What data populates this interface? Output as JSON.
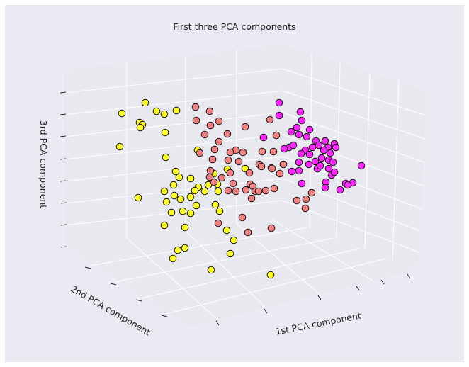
{
  "chart_data": {
    "type": "scatter",
    "title": "First three PCA components",
    "xlabel": "1st PCA component",
    "ylabel": "2nd PCA component",
    "zlabel": "3rd PCA component",
    "grid": true,
    "colors": {
      "background": "#eaeaf2",
      "pane": "#e8e8ef",
      "grid": "#ffffff",
      "marker_edge": "#1a1a1a"
    },
    "series": [
      {
        "color": "#ffff26",
        "points": [
          [
            205,
            145
          ],
          [
            172,
            160
          ],
          [
            221,
            157
          ],
          [
            232,
            161
          ],
          [
            249,
            156
          ],
          [
            197,
            173
          ],
          [
            201,
            176
          ],
          [
            198,
            180
          ],
          [
            233,
            187
          ],
          [
            169,
            207
          ],
          [
            279,
            212
          ],
          [
            234,
            222
          ],
          [
            321,
            239
          ],
          [
            248,
            242
          ],
          [
            346,
            238
          ],
          [
            302,
            245
          ],
          [
            253,
            250
          ],
          [
            269,
            252
          ],
          [
            245,
            261
          ],
          [
            294,
            261
          ],
          [
            307,
            260
          ],
          [
            280,
            264
          ],
          [
            232,
            270
          ],
          [
            275,
            269
          ],
          [
            289,
            270
          ],
          [
            308,
            270
          ],
          [
            246,
            276
          ],
          [
            195,
            279
          ],
          [
            255,
            281
          ],
          [
            269,
            278
          ],
          [
            235,
            285
          ],
          [
            277,
            290
          ],
          [
            304,
            289
          ],
          [
            258,
            298
          ],
          [
            242,
            300
          ],
          [
            269,
            301
          ],
          [
            310,
            298
          ],
          [
            232,
            318
          ],
          [
            261,
            321
          ],
          [
            320,
            325
          ],
          [
            330,
            339
          ],
          [
            251,
            353
          ],
          [
            261,
            350
          ],
          [
            325,
            358
          ],
          [
            244,
            365
          ],
          [
            298,
            381
          ],
          [
            382,
            388
          ]
        ]
      },
      {
        "color": "#f08080",
        "points": [
          [
            276,
            151
          ],
          [
            296,
            157
          ],
          [
            277,
            170
          ],
          [
            309,
            171
          ],
          [
            297,
            177
          ],
          [
            381,
            169
          ],
          [
            346,
            179
          ],
          [
            289,
            190
          ],
          [
            321,
            189
          ],
          [
            309,
            200
          ],
          [
            390,
            191
          ],
          [
            303,
            211
          ],
          [
            333,
            212
          ],
          [
            325,
            215
          ],
          [
            343,
            215
          ],
          [
            282,
            216
          ],
          [
            370,
            214
          ],
          [
            386,
            214
          ],
          [
            300,
            225
          ],
          [
            322,
            226
          ],
          [
            337,
            228
          ],
          [
            366,
            232
          ],
          [
            383,
            237
          ],
          [
            369,
            235
          ],
          [
            400,
            232
          ],
          [
            297,
            241
          ],
          [
            352,
            244
          ],
          [
            384,
            238
          ],
          [
            325,
            244
          ],
          [
            296,
            250
          ],
          [
            313,
            251
          ],
          [
            395,
            245
          ],
          [
            329,
            259
          ],
          [
            302,
            257
          ],
          [
            353,
            260
          ],
          [
            357,
            263
          ],
          [
            375,
            269
          ],
          [
            387,
            266
          ],
          [
            360,
            270
          ],
          [
            347,
            268
          ],
          [
            333,
            270
          ],
          [
            322,
            269
          ],
          [
            365,
            270
          ],
          [
            355,
            280
          ],
          [
            440,
            272
          ],
          [
            419,
            283
          ],
          [
            432,
            281
          ],
          [
            431,
            294
          ],
          [
            342,
            307
          ],
          [
            308,
            315
          ],
          [
            383,
            322
          ],
          [
            350,
            328
          ]
        ]
      },
      {
        "color": "#ff26ff",
        "points": [
          [
            394,
            145
          ],
          [
            424,
            158
          ],
          [
            394,
            163
          ],
          [
            426,
            170
          ],
          [
            419,
            180
          ],
          [
            411,
            186
          ],
          [
            437,
            183
          ],
          [
            422,
            190
          ],
          [
            433,
            193
          ],
          [
            372,
            194
          ],
          [
            446,
            199
          ],
          [
            459,
            199
          ],
          [
            450,
            205
          ],
          [
            472,
            203
          ],
          [
            441,
            208
          ],
          [
            463,
            208
          ],
          [
            408,
            208
          ],
          [
            401,
            210
          ],
          [
            414,
            205
          ],
          [
            431,
            212
          ],
          [
            457,
            212
          ],
          [
            474,
            208
          ],
          [
            466,
            216
          ],
          [
            437,
            218
          ],
          [
            425,
            217
          ],
          [
            454,
            223
          ],
          [
            445,
            228
          ],
          [
            464,
            226
          ],
          [
            422,
            229
          ],
          [
            436,
            232
          ],
          [
            470,
            229
          ],
          [
            448,
            238
          ],
          [
            464,
            238
          ],
          [
            422,
            241
          ],
          [
            452,
            234
          ],
          [
            510,
            234
          ],
          [
            468,
            247
          ],
          [
            472,
            243
          ],
          [
            412,
            242
          ],
          [
            498,
            258
          ],
          [
            488,
            259
          ],
          [
            460,
            257
          ],
          [
            491,
            261
          ],
          [
            426,
            259
          ],
          [
            459,
            265
          ],
          [
            480,
            268
          ]
        ]
      }
    ]
  }
}
